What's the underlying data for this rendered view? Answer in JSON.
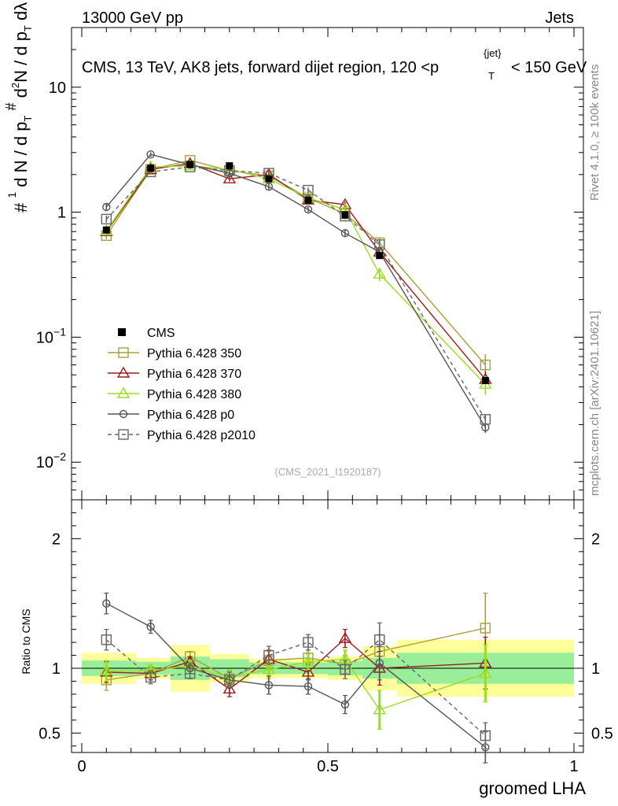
{
  "header": {
    "left": "13000 GeV pp",
    "right": "Jets"
  },
  "side_labels": {
    "rivet": "Rivet 4.1.0, ≥ 100k events",
    "mcplots": "mcplots.cern.ch [arXiv:2401.10621]"
  },
  "chart_data": {
    "type": "line",
    "title": "CMS, 13 TeV, AK8 jets, forward dijet region, 120 <p",
    "title_sup": "{jet}",
    "title_sub": "T",
    "title_tail": "< 150 GeV",
    "watermark": "(CMS_2021_I1920187)",
    "xlabel": "groomed LHA",
    "ylabel_main": "1/N dN/dp_T d^2N/dp_T dλ",
    "ylabel_ratio": "Ratio to CMS",
    "xlim": [
      0,
      1
    ],
    "ylim_main": [
      0.005,
      30
    ],
    "ylim_ratio": [
      0.35,
      2.3
    ],
    "yscale_main": "log",
    "x_ticks": [
      "0",
      "0.5",
      "1"
    ],
    "y_ticks_main": [
      "10^-2",
      "10^-1",
      "1",
      "10"
    ],
    "y_ticks_ratio": [
      "0.5",
      "1",
      "2"
    ],
    "bins": [
      [
        0.0,
        0.11
      ],
      [
        0.11,
        0.18
      ],
      [
        0.18,
        0.26
      ],
      [
        0.26,
        0.34
      ],
      [
        0.34,
        0.42
      ],
      [
        0.42,
        0.5
      ],
      [
        0.5,
        0.57
      ],
      [
        0.57,
        0.64
      ],
      [
        0.64,
        1.0
      ]
    ],
    "x": [
      0.05,
      0.14,
      0.22,
      0.3,
      0.38,
      0.46,
      0.535,
      0.605,
      0.82
    ],
    "data": {
      "name": "CMS",
      "values": [
        0.72,
        2.25,
        2.4,
        2.35,
        1.85,
        1.25,
        0.95,
        0.45,
        0.045
      ],
      "band_inner": [
        0.06,
        0.05,
        0.09,
        0.07,
        0.045,
        0.045,
        0.055,
        0.08,
        0.12
      ],
      "band_outer": [
        0.12,
        0.08,
        0.18,
        0.11,
        0.075,
        0.075,
        0.09,
        0.17,
        0.22
      ]
    },
    "series": [
      {
        "name": "Pythia 6.428 350",
        "color": "#a8a03a",
        "marker": "square",
        "dash": "",
        "values": [
          0.65,
          2.2,
          2.6,
          2.15,
          1.95,
          1.3,
          0.97,
          0.57,
          0.06
        ],
        "ratio": [
          0.91,
          0.96,
          1.09,
          0.92,
          1.06,
          1.08,
          1.03,
          1.13,
          1.31
        ],
        "ratio_err": [
          0.08,
          0.05,
          0.04,
          0.06,
          0.07,
          0.06,
          0.07,
          0.13,
          0.27
        ]
      },
      {
        "name": "Pythia 6.428 370",
        "color": "#a01a1a",
        "marker": "triangle",
        "dash": "",
        "values": [
          0.7,
          2.2,
          2.45,
          1.85,
          2.0,
          1.25,
          1.15,
          0.48,
          0.046
        ],
        "ratio": [
          0.97,
          0.96,
          1.05,
          0.84,
          1.07,
          0.97,
          1.23,
          1.0,
          1.04
        ],
        "ratio_err": [
          0.08,
          0.05,
          0.04,
          0.06,
          0.07,
          0.06,
          0.07,
          0.13,
          0.2
        ]
      },
      {
        "name": "Pythia 6.428 380",
        "color": "#99dd22",
        "marker": "triangle",
        "dash": "",
        "values": [
          0.71,
          2.3,
          2.35,
          2.2,
          1.85,
          1.3,
          1.05,
          0.32,
          0.042
        ],
        "ratio": [
          0.98,
          0.98,
          1.02,
          0.93,
          0.99,
          1.05,
          1.07,
          0.68,
          0.96
        ],
        "ratio_err": [
          0.08,
          0.05,
          0.04,
          0.06,
          0.07,
          0.06,
          0.07,
          0.15,
          0.22
        ]
      },
      {
        "name": "Pythia 6.428 p0",
        "color": "#555555",
        "marker": "circle",
        "dash": "",
        "values": [
          1.1,
          2.9,
          2.4,
          2.05,
          1.6,
          1.05,
          0.68,
          0.48,
          0.019
        ],
        "ratio": [
          1.5,
          1.32,
          1.0,
          0.91,
          0.87,
          0.86,
          0.72,
          1.04,
          0.39
        ],
        "ratio_err": [
          0.08,
          0.05,
          0.04,
          0.06,
          0.07,
          0.06,
          0.07,
          0.13,
          0.12
        ]
      },
      {
        "name": "Pythia 6.428 p2010",
        "color": "#666666",
        "marker": "square",
        "dash": "5,4",
        "values": [
          0.88,
          2.1,
          2.3,
          2.15,
          2.05,
          1.5,
          0.93,
          0.55,
          0.022
        ],
        "ratio": [
          1.22,
          0.93,
          0.96,
          0.91,
          1.1,
          1.2,
          0.99,
          1.22,
          0.48
        ],
        "ratio_err": [
          0.08,
          0.05,
          0.04,
          0.06,
          0.07,
          0.06,
          0.07,
          0.13,
          0.1
        ]
      }
    ]
  }
}
